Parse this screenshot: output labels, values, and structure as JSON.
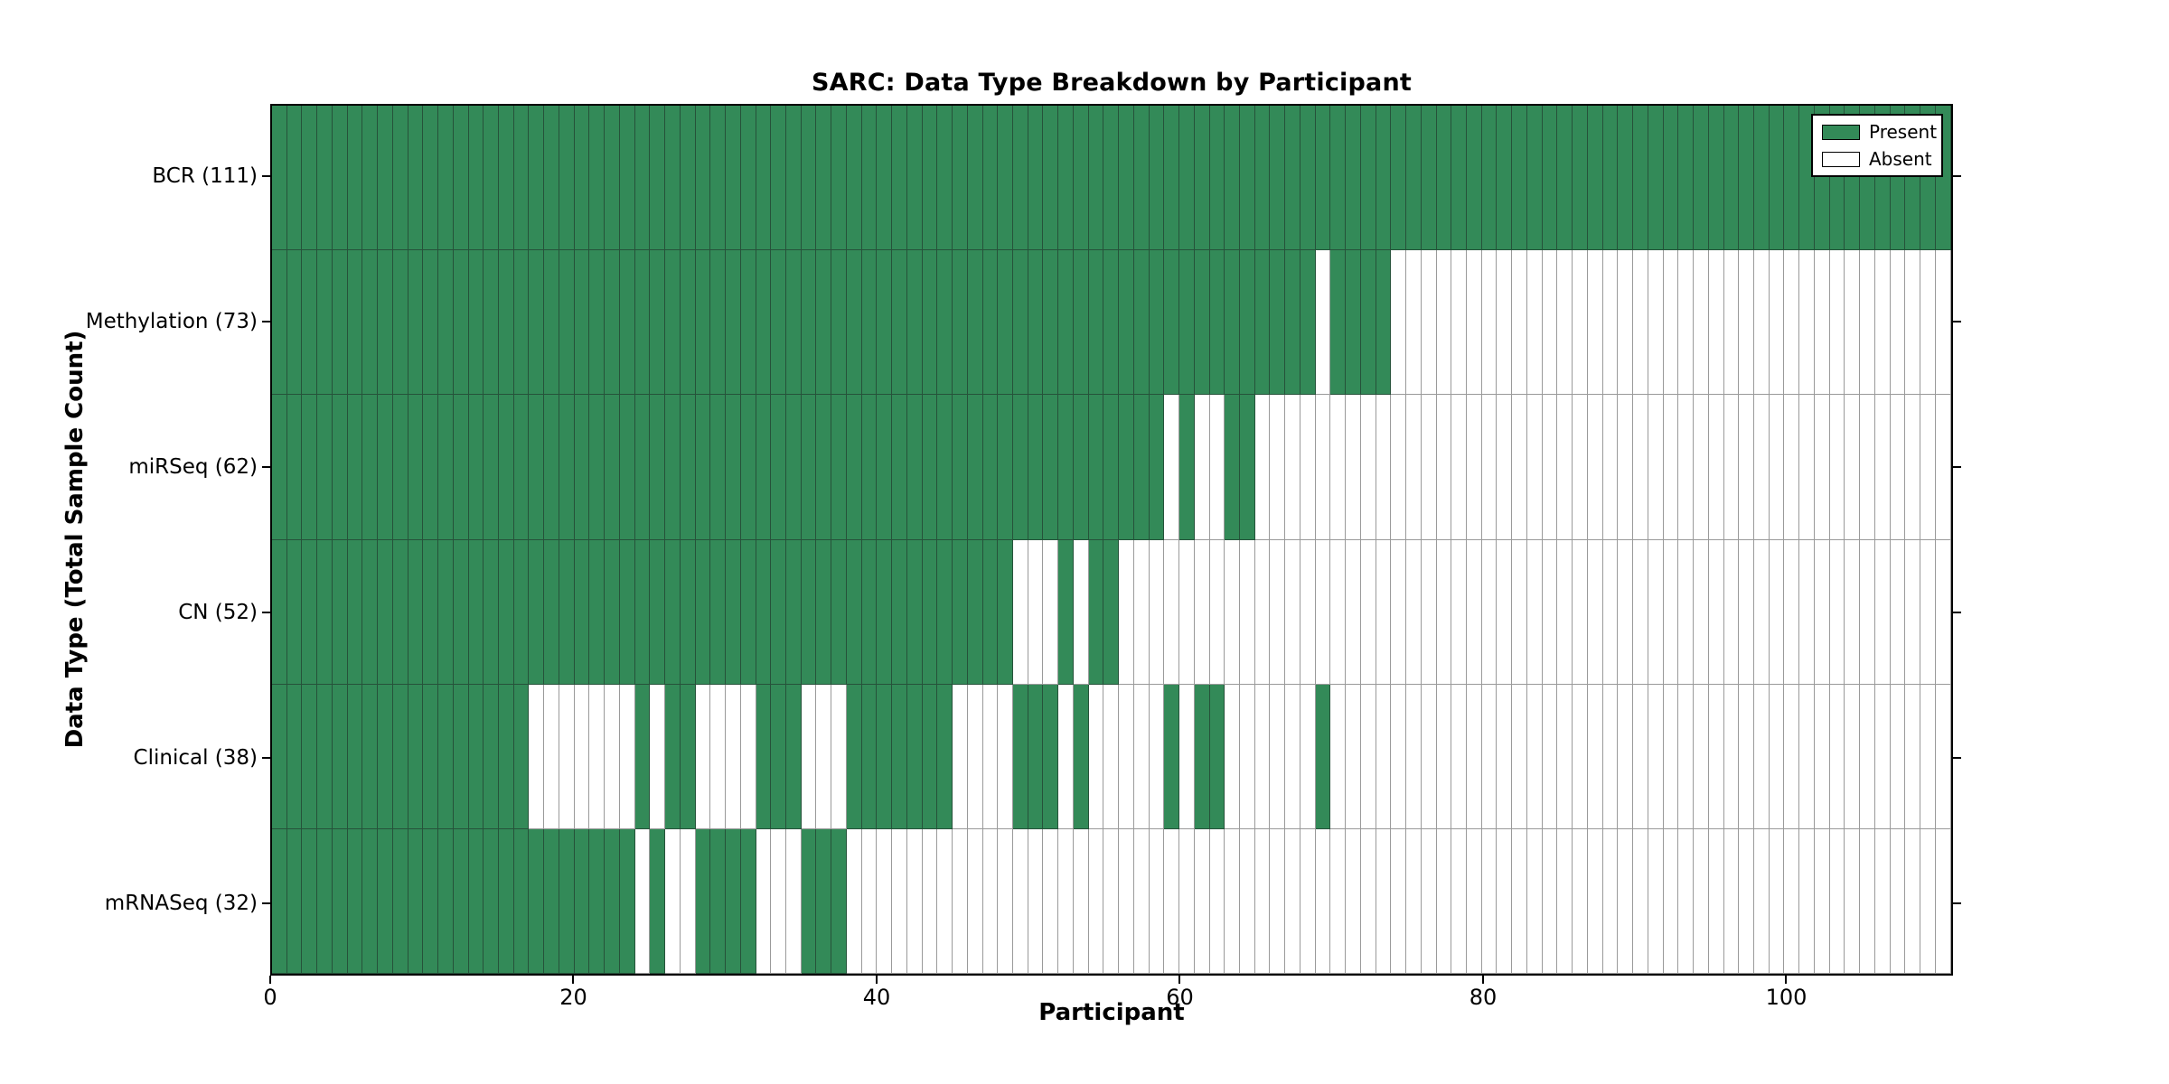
{
  "figure": {
    "title": "SARC: Data Type Breakdown by Participant",
    "xlabel": "Participant",
    "ylabel": "Data Type (Total Sample Count)"
  },
  "legend": {
    "items": [
      {
        "label": "Present",
        "color": "#338a58"
      },
      {
        "label": "Absent",
        "color": "#ffffff"
      }
    ]
  },
  "chart_data": {
    "type": "heatmap",
    "title": "SARC: Data Type Breakdown by Participant",
    "xlabel": "Participant",
    "ylabel": "Data Type (Total Sample Count)",
    "x_range": [
      0,
      111
    ],
    "n_participants": 111,
    "x_ticks": [
      0,
      20,
      40,
      60,
      80,
      100
    ],
    "x_tick_labels": [
      "0",
      "20",
      "40",
      "60",
      "80",
      "100"
    ],
    "grid": "cell-borders",
    "legend_position": "upper-right-inside",
    "colors": {
      "present": "#338a58",
      "absent": "#ffffff",
      "present_edge": "#26523a",
      "absent_edge": "#9a9a9a"
    },
    "rows": [
      {
        "label": "BCR (111)",
        "data_type": "BCR",
        "total_samples": 111,
        "present_segments": [
          [
            0,
            111
          ]
        ]
      },
      {
        "label": "Methylation (73)",
        "data_type": "Methylation",
        "total_samples": 73,
        "present_segments": [
          [
            0,
            69
          ],
          [
            70,
            74
          ]
        ]
      },
      {
        "label": "miRSeq (62)",
        "data_type": "miRSeq",
        "total_samples": 62,
        "present_segments": [
          [
            0,
            59
          ],
          [
            60,
            61
          ],
          [
            63,
            65
          ]
        ]
      },
      {
        "label": "CN (52)",
        "data_type": "CN",
        "total_samples": 52,
        "present_segments": [
          [
            0,
            49
          ],
          [
            52,
            53
          ],
          [
            54,
            56
          ]
        ]
      },
      {
        "label": "Clinical (38)",
        "data_type": "Clinical",
        "total_samples": 38,
        "present_segments": [
          [
            0,
            17
          ],
          [
            24,
            25
          ],
          [
            26,
            28
          ],
          [
            32,
            35
          ],
          [
            38,
            45
          ],
          [
            49,
            52
          ],
          [
            53,
            54
          ],
          [
            59,
            60
          ],
          [
            61,
            63
          ],
          [
            69,
            70
          ]
        ]
      },
      {
        "label": "mRNASeq (32)",
        "data_type": "mRNASeq",
        "total_samples": 32,
        "present_segments": [
          [
            0,
            24
          ],
          [
            25,
            26
          ],
          [
            28,
            32
          ],
          [
            35,
            38
          ]
        ]
      }
    ]
  }
}
